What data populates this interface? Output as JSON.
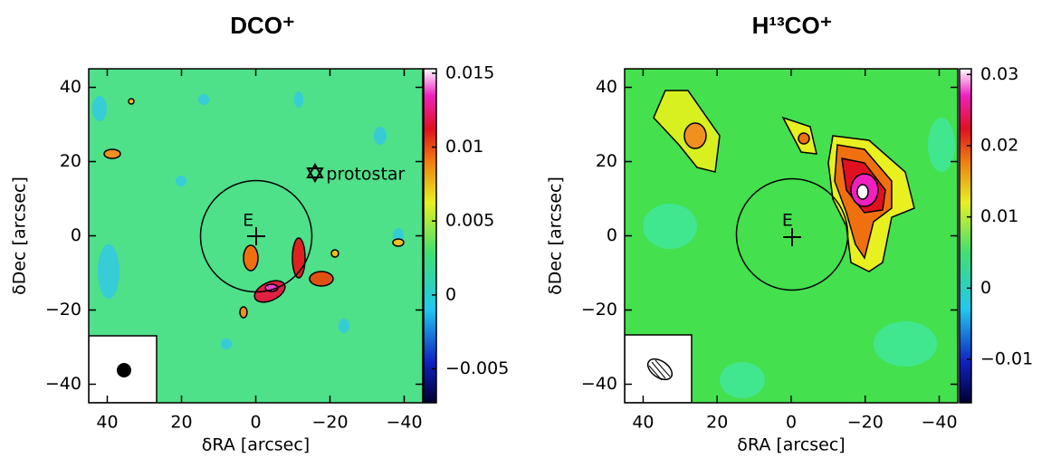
{
  "chart_data": [
    {
      "type": "heatmap",
      "title": "DCO⁺",
      "x_label": "δRA [arcsec]",
      "y_label": "δDec [arcsec]",
      "xlim": [
        45,
        -45
      ],
      "xticks": [
        40,
        20,
        0,
        {
          "value": -20,
          "label": "−20"
        },
        {
          "value": -40,
          "label": "−40"
        }
      ],
      "ylim": [
        -45,
        45
      ],
      "yticks": [
        {
          "value": -40,
          "label": "−40"
        },
        {
          "value": -20,
          "label": "−20"
        },
        0,
        20,
        40
      ],
      "clim": [
        -0.0073,
        0.0153
      ],
      "cticks": [
        {
          "value": -0.005,
          "label": "−0.005"
        },
        0,
        0.005,
        0.01,
        0.015
      ],
      "annotations": [
        "E",
        "protostar"
      ]
    },
    {
      "type": "heatmap",
      "title": "H¹³CO⁺",
      "x_label": "δRA [arcsec]",
      "y_label": "δDec [arcsec]",
      "xlim": [
        45,
        -45
      ],
      "xticks": [
        40,
        20,
        0,
        {
          "value": -20,
          "label": "−20"
        },
        {
          "value": -40,
          "label": "−40"
        }
      ],
      "ylim": [
        -45,
        45
      ],
      "yticks": [
        {
          "value": -40,
          "label": "−40"
        },
        {
          "value": -20,
          "label": "−20"
        },
        0,
        20,
        40
      ],
      "clim": [
        -0.0161,
        0.0308
      ],
      "cticks": [
        {
          "value": -0.01,
          "label": "−0.01"
        },
        0,
        0.01,
        0.02,
        0.03
      ],
      "annotations": [
        "E"
      ]
    }
  ]
}
